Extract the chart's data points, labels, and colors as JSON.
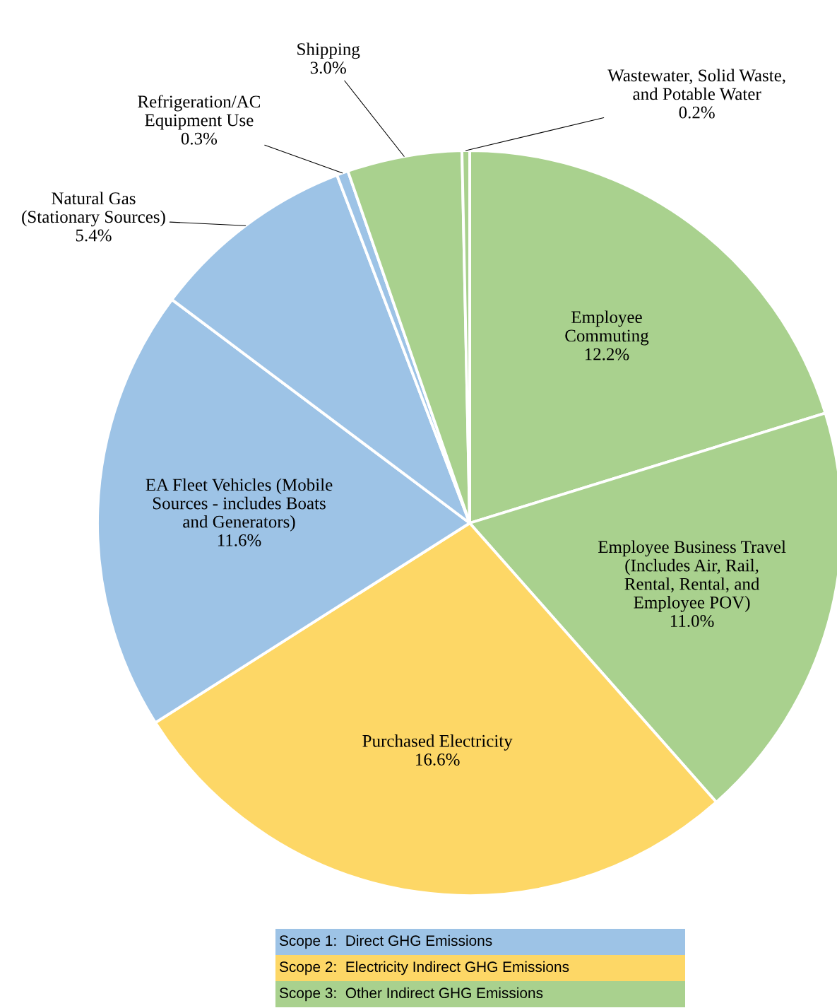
{
  "chart_data": [
    {
      "type": "pie",
      "categories": [
        "Employee\nCommuting",
        "Employee Business Travel\n(Includes Air, Rail,\nRental, Rental, and\nEmployee POV)",
        "Purchased Electricity",
        "EA Fleet Vehicles (Mobile\nSources - includes Boats\nand Generators)",
        "Natural Gas\n(Stationary Sources)",
        "Refrigeration/AC\nEquipment Use",
        "Shipping",
        "Wastewater, Solid Waste,\nand Potable Water"
      ],
      "values": [
        12.2,
        11.0,
        16.6,
        11.6,
        5.4,
        0.3,
        3.0,
        0.2
      ],
      "value_labels": [
        "12.2%",
        "11.0%",
        "16.6%",
        "11.6%",
        "5.4%",
        "0.3%",
        "3.0%",
        "0.2%"
      ],
      "colors": [
        "#a9d18e",
        "#a9d18e",
        "#fdd766",
        "#9dc3e6",
        "#9dc3e6",
        "#9dc3e6",
        "#a9d18e",
        "#a9d18e"
      ]
    },
    {
      "type": "other",
      "categories": [
        "Scope 1:  Direct GHG Emissions",
        "Scope 2:  Electricity Indirect GHG Emissions",
        "Scope 3:  Other Indirect GHG Emissions"
      ],
      "colors": [
        "#9dc3e6",
        "#fdd766",
        "#a9d18e"
      ]
    }
  ]
}
